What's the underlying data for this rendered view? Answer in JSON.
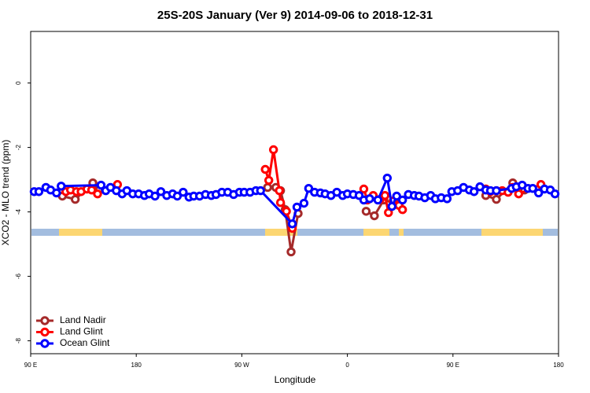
{
  "chart_data": {
    "type": "line",
    "title": "25S-20S January (Ver 9)   2014-09-06 to 2018-12-31",
    "x_label": "Longitude",
    "y_label": "XCO2 - MLO trend (ppm)",
    "xlim": [
      90,
      540
    ],
    "ylim": [
      -8.4,
      1.6
    ],
    "xticks": [
      {
        "value": 90,
        "label": "90 E"
      },
      180,
      {
        "value": 270,
        "label": "90 W"
      },
      {
        "value": 360,
        "label": "0"
      },
      {
        "value": 450,
        "label": "90 E"
      },
      {
        "value": 540,
        "label": "180"
      }
    ],
    "yticks": [
      0,
      -2,
      -4,
      -6,
      -8
    ],
    "legend": "bottom-left",
    "series": [
      {
        "name": "Land Nadir",
        "color": "#a52a2a",
        "x": [
          117,
          128,
          143,
          148,
          200,
          292,
          299,
          303,
          307,
          312,
          318,
          340,
          376,
          383,
          391,
          403,
          460,
          478,
          487,
          501,
          511
        ],
        "values": [
          -3.51,
          -3.61,
          -3.1,
          -3.34,
          null,
          -3.24,
          -3.24,
          -3.34,
          -3.93,
          -5.24,
          -4.05,
          null,
          -3.98,
          -4.12,
          -3.63,
          -3.76,
          null,
          -3.49,
          -3.61,
          -3.1,
          -3.32
        ]
      },
      {
        "name": "Land Glint",
        "color": "#ff0000",
        "x": [
          120,
          124,
          129,
          133,
          138,
          142,
          147,
          164,
          200,
          290,
          293,
          297,
          302,
          303,
          308,
          313,
          340,
          374,
          377,
          382,
          388,
          392,
          395,
          399,
          404,
          407,
          460,
          478,
          482,
          487,
          492,
          497,
          501,
          506,
          525
        ],
        "values": [
          -3.37,
          -3.32,
          -3.37,
          -3.37,
          -3.29,
          -3.32,
          -3.44,
          -3.15,
          null,
          -2.68,
          -3.02,
          -2.07,
          -3.34,
          -3.71,
          -3.98,
          -4.51,
          null,
          -3.29,
          -3.63,
          -3.49,
          -3.61,
          -3.49,
          -4.02,
          -3.66,
          -3.8,
          -3.93,
          null,
          -3.29,
          -3.37,
          -3.34,
          -3.34,
          -3.39,
          -3.24,
          -3.44,
          -3.15
        ]
      },
      {
        "name": "Ocean Glint",
        "color": "#0000ff",
        "x": [
          93,
          97,
          103,
          107,
          112,
          116,
          150,
          154,
          158,
          163,
          168,
          172,
          177,
          182,
          187,
          191,
          196,
          201,
          206,
          211,
          215,
          220,
          225,
          229,
          234,
          239,
          244,
          248,
          253,
          258,
          263,
          268,
          272,
          277,
          282,
          286,
          313,
          317,
          323,
          327,
          332,
          337,
          341,
          346,
          351,
          356,
          360,
          365,
          370,
          374,
          379,
          386,
          394,
          398,
          402,
          407,
          412,
          417,
          421,
          426,
          431,
          435,
          440,
          445,
          449,
          454,
          459,
          464,
          468,
          473,
          478,
          482,
          487,
          500,
          504,
          509,
          514,
          518,
          523,
          528,
          533,
          537
        ],
        "values": [
          -3.37,
          -3.37,
          -3.24,
          -3.32,
          -3.41,
          -3.2,
          -3.17,
          -3.34,
          -3.24,
          -3.34,
          -3.44,
          -3.34,
          -3.44,
          -3.44,
          -3.49,
          -3.44,
          -3.51,
          -3.37,
          -3.49,
          -3.44,
          -3.51,
          -3.39,
          -3.54,
          -3.51,
          -3.51,
          -3.46,
          -3.49,
          -3.46,
          -3.39,
          -3.39,
          -3.46,
          -3.39,
          -3.39,
          -3.39,
          -3.34,
          -3.34,
          -4.37,
          -3.85,
          -3.73,
          -3.27,
          -3.39,
          -3.41,
          -3.44,
          -3.49,
          -3.39,
          -3.49,
          -3.44,
          -3.46,
          -3.49,
          -3.63,
          -3.59,
          -3.63,
          -2.95,
          -3.83,
          -3.51,
          -3.63,
          -3.46,
          -3.49,
          -3.51,
          -3.56,
          -3.49,
          -3.59,
          -3.56,
          -3.59,
          -3.37,
          -3.34,
          -3.24,
          -3.32,
          -3.37,
          -3.22,
          -3.32,
          -3.34,
          -3.34,
          -3.27,
          -3.22,
          -3.17,
          -3.27,
          -3.27,
          -3.41,
          -3.29,
          -3.32,
          -3.44
        ]
      }
    ]
  }
}
